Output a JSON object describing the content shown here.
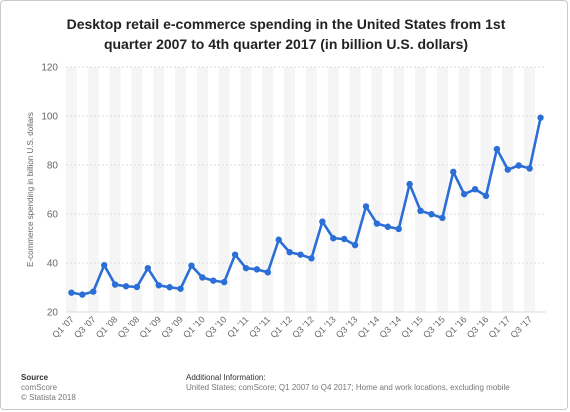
{
  "chart_data": {
    "type": "line",
    "title": "Desktop retail e-commerce spending in the United States from 1st quarter 2007 to 4th quarter 2017 (in billion U.S. dollars)",
    "title_lines": [
      "Desktop retail e-commerce spending in the United States from 1st",
      "quarter 2007 to 4th quarter 2017 (in billion U.S. dollars)"
    ],
    "xlabel": "",
    "ylabel": "E-commerce spending in billion U.S. dollars",
    "ylim": [
      20,
      120
    ],
    "yticks": [
      20,
      40,
      60,
      80,
      100,
      120
    ],
    "grid": true,
    "legend": "none",
    "x": [
      "Q1 '07",
      "Q2 '07",
      "Q3 '07",
      "Q4 '07",
      "Q1 '08",
      "Q2 '08",
      "Q3 '08",
      "Q4 '08",
      "Q1 '09",
      "Q2 '09",
      "Q3 '09",
      "Q4 '09",
      "Q1 '10",
      "Q2 '10",
      "Q3 '10",
      "Q4 '10",
      "Q1 '11",
      "Q2 '11",
      "Q3 '11",
      "Q4 '11",
      "Q1 '12",
      "Q2 '12",
      "Q3 '12",
      "Q4 '12",
      "Q1 '13",
      "Q2 '13",
      "Q3 '13",
      "Q4 '13",
      "Q1 '14",
      "Q2 '14",
      "Q3 '14",
      "Q4 '14",
      "Q1 '15",
      "Q2 '15",
      "Q3 '15",
      "Q4 '15",
      "Q1 '16",
      "Q2 '16",
      "Q3 '16",
      "Q4 '16",
      "Q1 '17",
      "Q2 '17",
      "Q3 '17",
      "Q4 '17"
    ],
    "tick_labels": [
      "Q1 '07",
      "Q3 '07",
      "Q1 '08",
      "Q3 '08",
      "Q1 '09",
      "Q3 '09",
      "Q1 '10",
      "Q3 '10",
      "Q1 '11",
      "Q3 '11",
      "Q1 '12",
      "Q3 '12",
      "Q1 '13",
      "Q3 '13",
      "Q1 '14",
      "Q3 '14",
      "Q1 '15",
      "Q3 '15",
      "Q1 '16",
      "Q3 '16",
      "Q1 '17",
      "Q3 '17"
    ],
    "series": [
      {
        "values": [
          27.9,
          27.1,
          28.3,
          39.1,
          31.2,
          30.5,
          30.2,
          37.9,
          30.9,
          30.1,
          29.5,
          38.9,
          34.1,
          32.8,
          32.2,
          43.4,
          37.9,
          37.4,
          36.2,
          49.5,
          44.4,
          43.4,
          41.9,
          56.9,
          50.1,
          49.8,
          47.3,
          63.1,
          56.1,
          54.8,
          53.9,
          72.2,
          61.3,
          59.9,
          58.4,
          77.2,
          68.1,
          70.1,
          67.4,
          86.5,
          78.1,
          79.8,
          78.6,
          99.3
        ]
      }
    ],
    "colors": {
      "line": "#2b6fd6",
      "grid": "#dcdcdc",
      "band": "#f5f5f5",
      "axis_text": "#666666"
    }
  },
  "footer": {
    "source_heading": "Source",
    "source_lines": [
      "comScore",
      "© Statista 2018"
    ],
    "info_heading": "Additional Information:",
    "info_lines": [
      "United States; comScore; Q1 2007 to Q4 2017; Home and work locations, excluding mobile"
    ]
  }
}
